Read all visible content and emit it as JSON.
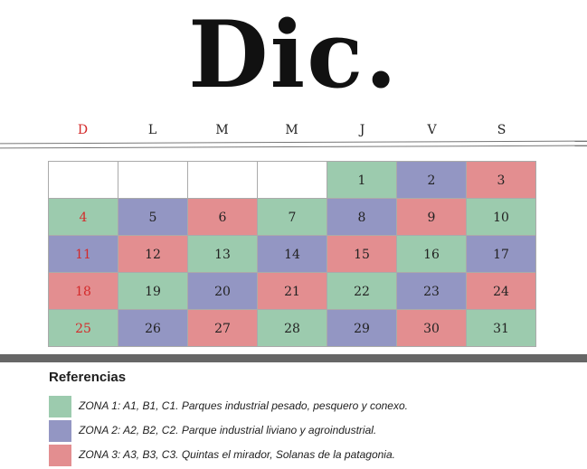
{
  "title": "Dic.",
  "weekdays": [
    "D",
    "L",
    "M",
    "M",
    "J",
    "V",
    "S"
  ],
  "colors": {
    "zone1": "#9ccbae",
    "zone2": "#9396c3",
    "zone3": "#e38e90",
    "sunday_text": "#d42a2a"
  },
  "calendar": {
    "weeks": [
      [
        {
          "day": "",
          "zone": 0
        },
        {
          "day": "",
          "zone": 0
        },
        {
          "day": "",
          "zone": 0
        },
        {
          "day": "",
          "zone": 0
        },
        {
          "day": "1",
          "zone": 1
        },
        {
          "day": "2",
          "zone": 2
        },
        {
          "day": "3",
          "zone": 3
        }
      ],
      [
        {
          "day": "4",
          "zone": 1
        },
        {
          "day": "5",
          "zone": 2
        },
        {
          "day": "6",
          "zone": 3
        },
        {
          "day": "7",
          "zone": 1
        },
        {
          "day": "8",
          "zone": 2
        },
        {
          "day": "9",
          "zone": 3
        },
        {
          "day": "10",
          "zone": 1
        }
      ],
      [
        {
          "day": "11",
          "zone": 2
        },
        {
          "day": "12",
          "zone": 3
        },
        {
          "day": "13",
          "zone": 1
        },
        {
          "day": "14",
          "zone": 2
        },
        {
          "day": "15",
          "zone": 3
        },
        {
          "day": "16",
          "zone": 1
        },
        {
          "day": "17",
          "zone": 2
        }
      ],
      [
        {
          "day": "18",
          "zone": 3
        },
        {
          "day": "19",
          "zone": 1
        },
        {
          "day": "20",
          "zone": 2
        },
        {
          "day": "21",
          "zone": 3
        },
        {
          "day": "22",
          "zone": 1
        },
        {
          "day": "23",
          "zone": 2
        },
        {
          "day": "24",
          "zone": 3
        }
      ],
      [
        {
          "day": "25",
          "zone": 1
        },
        {
          "day": "26",
          "zone": 2
        },
        {
          "day": "27",
          "zone": 3
        },
        {
          "day": "28",
          "zone": 1
        },
        {
          "day": "29",
          "zone": 2
        },
        {
          "day": "30",
          "zone": 3
        },
        {
          "day": "31",
          "zone": 1
        }
      ]
    ]
  },
  "references": {
    "title": "Referencias",
    "items": [
      {
        "zone": 1,
        "text": "ZONA 1: A1, B1, C1. Parques industrial pesado, pesquero y conexo."
      },
      {
        "zone": 2,
        "text": "ZONA 2: A2, B2, C2. Parque industrial liviano y agroindustrial."
      },
      {
        "zone": 3,
        "text": "ZONA 3: A3, B3, C3. Quintas el mirador, Solanas de la patagonia."
      }
    ]
  }
}
